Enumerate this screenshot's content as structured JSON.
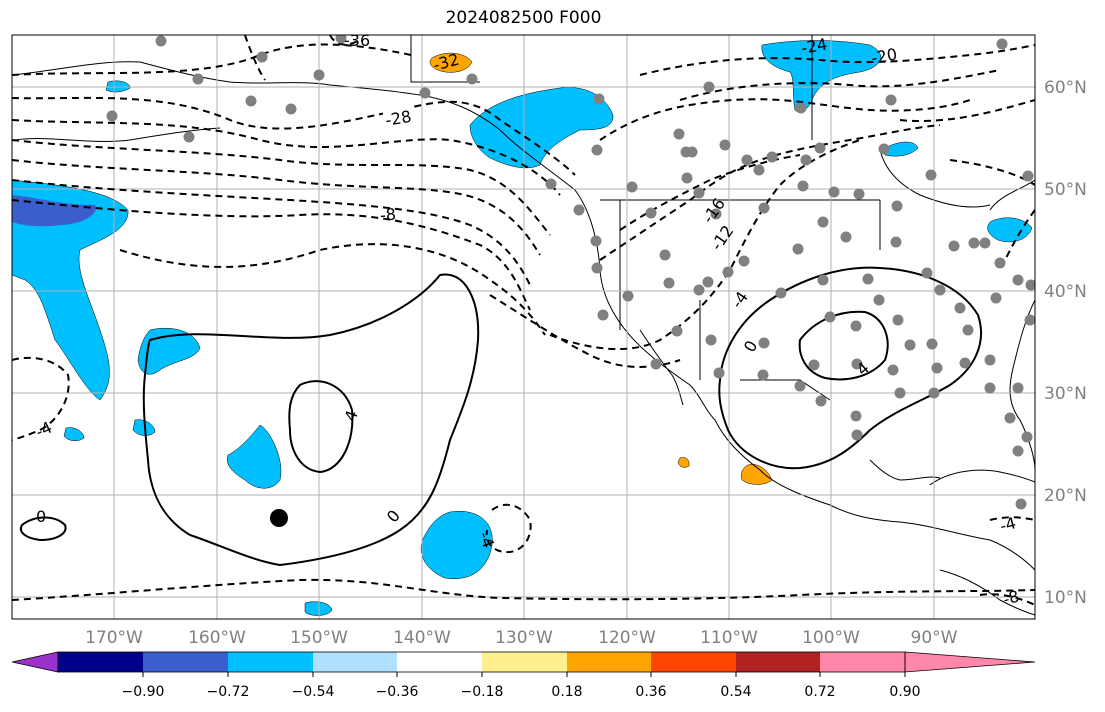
{
  "title": "2024082500 F000",
  "longitude_labels": [
    "170°W",
    "160°W",
    "150°W",
    "140°W",
    "130°W",
    "120°W",
    "110°W",
    "100°W",
    "90°W"
  ],
  "latitude_labels": [
    "60°N",
    "50°N",
    "40°N",
    "30°N",
    "20°N",
    "10°N"
  ],
  "colorbar": {
    "tick_labels": [
      "−0.90",
      "−0.72",
      "−0.54",
      "−0.36",
      "−0.18",
      "0.18",
      "0.36",
      "0.54",
      "0.72",
      "0.90"
    ],
    "colors": [
      "#9932cc",
      "#00008b",
      "#3a5fcd",
      "#00bfff",
      "#b0e2ff",
      "#ffffff",
      "#fff08f",
      "#ffa500",
      "#ff4500",
      "#b22222",
      "#ff88aa"
    ]
  },
  "contour_labels": [
    "-28",
    "-32",
    "-36",
    "-24",
    "-20",
    "-16",
    "-12",
    "-8",
    "-4",
    "0",
    "0",
    "0",
    "4",
    "4",
    "-4",
    "-4",
    "-4",
    "-8"
  ],
  "colors": {
    "fill_blue": "#00bfff",
    "fill_orange": "#ffa500",
    "station_dot": "#808080",
    "contour": "#000000"
  }
}
